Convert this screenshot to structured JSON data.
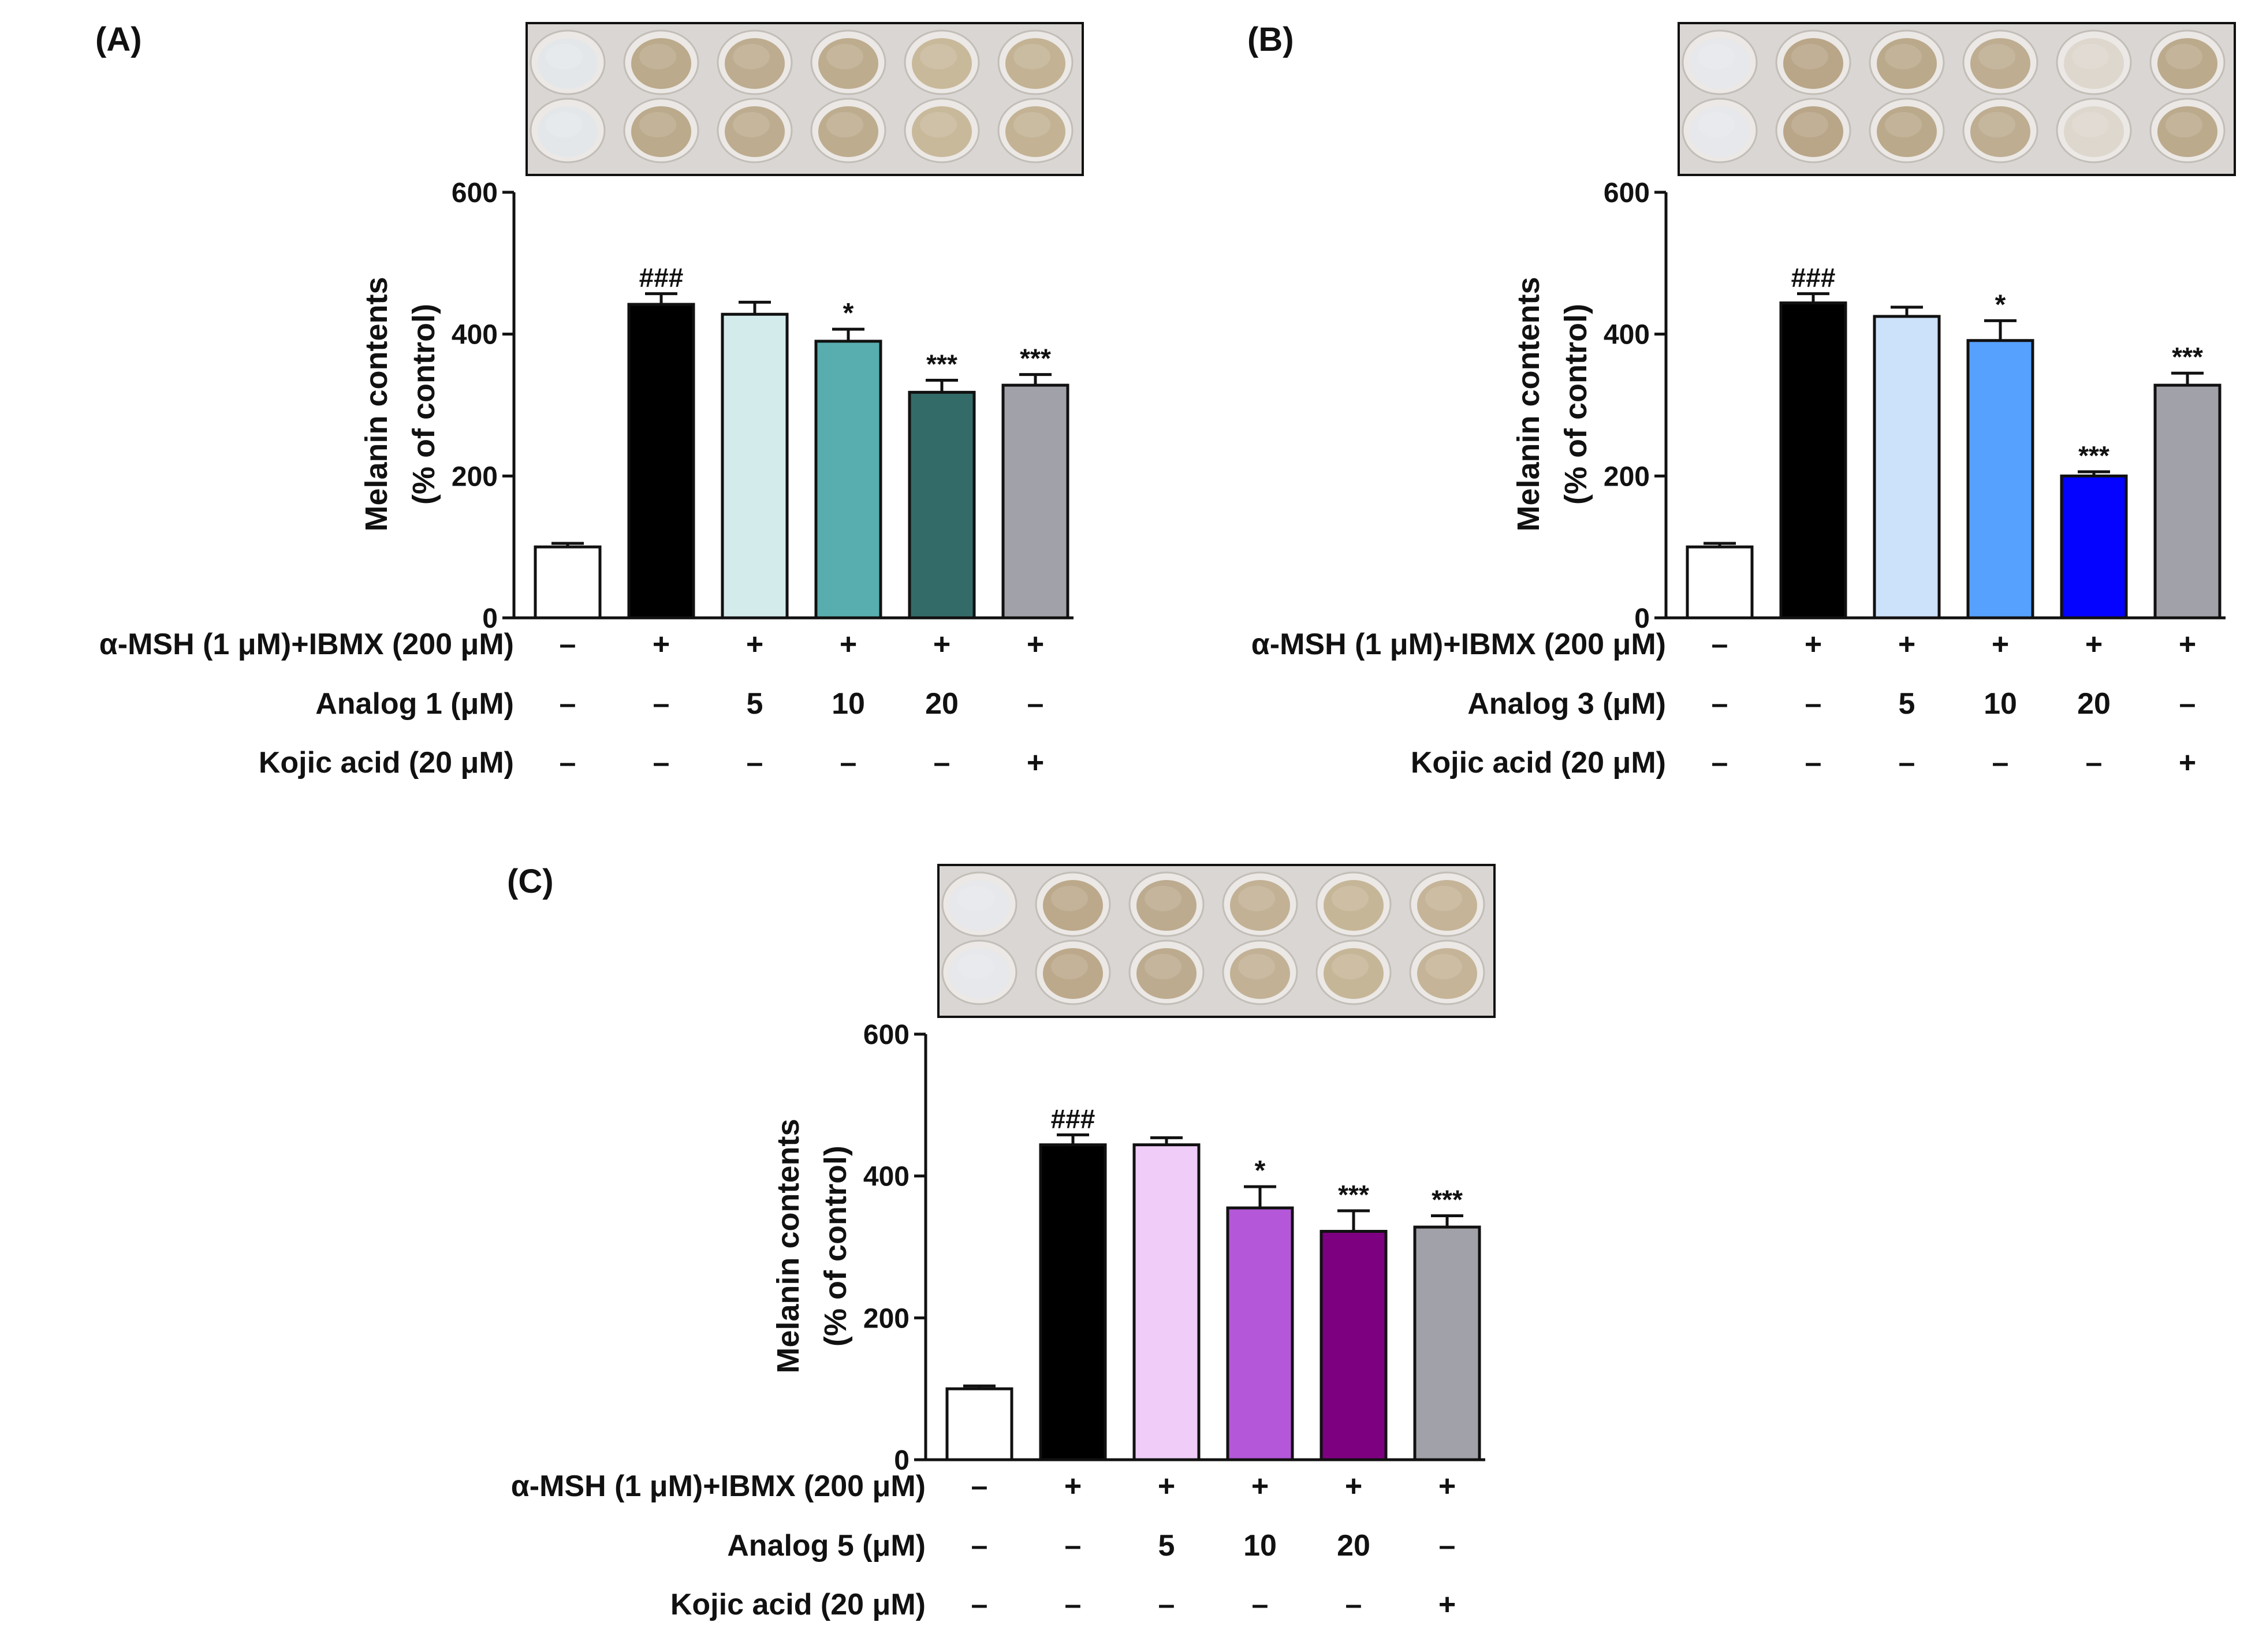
{
  "chart_data": [
    {
      "panel_label": "(A)",
      "type": "bar",
      "ylabel_lines": [
        "Melanin contents",
        "(% of control)"
      ],
      "xlabel": "",
      "ylim": [
        0,
        600
      ],
      "yticks": [
        "0",
        "200",
        "400",
        "600"
      ],
      "bars": [
        {
          "value": 100,
          "error": 5,
          "color": "#ffffff",
          "annotation": ""
        },
        {
          "value": 442,
          "error": 15,
          "color": "#000000",
          "annotation": "###"
        },
        {
          "value": 428,
          "error": 17,
          "color": "#d4ebec",
          "annotation": ""
        },
        {
          "value": 390,
          "error": 17,
          "color": "#58aeae",
          "annotation": "*"
        },
        {
          "value": 318,
          "error": 17,
          "color": "#336b69",
          "annotation": "***"
        },
        {
          "value": 328,
          "error": 15,
          "color": "#a1a1a9",
          "annotation": "***"
        }
      ],
      "treatment_rows": [
        {
          "label": "α-MSH (1 μM)+IBMX (200 μM)",
          "values": [
            "–",
            "+",
            "+",
            "+",
            "+",
            "+"
          ]
        },
        {
          "label": "Analog 1 (μM)",
          "values": [
            "–",
            "–",
            "5",
            "10",
            "20",
            "–"
          ]
        },
        {
          "label": "Kojic acid (20 μM)",
          "values": [
            "–",
            "–",
            "–",
            "–",
            "–",
            "+"
          ]
        }
      ],
      "plate_photo": {
        "rows": 2,
        "wells": 6,
        "well_colors": [
          "#e4e7ea",
          "#b8a686",
          "#bba98a",
          "#bca98a",
          "#c7b697",
          "#c1b08f"
        ]
      }
    },
    {
      "panel_label": "(B)",
      "type": "bar",
      "ylabel_lines": [
        "Melanin contents",
        "(% of control)"
      ],
      "xlabel": "",
      "ylim": [
        0,
        600
      ],
      "yticks": [
        "0",
        "200",
        "400",
        "600"
      ],
      "bars": [
        {
          "value": 100,
          "error": 5,
          "color": "#ffffff",
          "annotation": ""
        },
        {
          "value": 444,
          "error": 13,
          "color": "#000000",
          "annotation": "###"
        },
        {
          "value": 425,
          "error": 13,
          "color": "#cce1fa",
          "annotation": ""
        },
        {
          "value": 391,
          "error": 28,
          "color": "#56a1fe",
          "annotation": "*"
        },
        {
          "value": 200,
          "error": 6,
          "color": "#0303ff",
          "annotation": "***"
        },
        {
          "value": 328,
          "error": 17,
          "color": "#a1a1a9",
          "annotation": "***"
        }
      ],
      "treatment_rows": [
        {
          "label": "α-MSH (1 μM)+IBMX (200 μM)",
          "values": [
            "–",
            "+",
            "+",
            "+",
            "+",
            "+"
          ]
        },
        {
          "label": "Analog 3 (μM)",
          "values": [
            "–",
            "–",
            "5",
            "10",
            "20",
            "–"
          ]
        },
        {
          "label": "Kojic acid (20 μM)",
          "values": [
            "–",
            "–",
            "–",
            "–",
            "–",
            "+"
          ]
        }
      ],
      "plate_photo": {
        "rows": 2,
        "wells": 6,
        "well_colors": [
          "#e6e8eb",
          "#b6a283",
          "#b8a586",
          "#bcaa8c",
          "#dcd6cb",
          "#b9a788"
        ]
      }
    },
    {
      "panel_label": "(C)",
      "type": "bar",
      "ylabel_lines": [
        "Melanin contents",
        "(% of control)"
      ],
      "xlabel": "",
      "ylim": [
        0,
        600
      ],
      "yticks": [
        "0",
        "200",
        "400",
        "600"
      ],
      "bars": [
        {
          "value": 100,
          "error": 4,
          "color": "#ffffff",
          "annotation": ""
        },
        {
          "value": 444,
          "error": 14,
          "color": "#000000",
          "annotation": "###"
        },
        {
          "value": 444,
          "error": 10,
          "color": "#efcdf8",
          "annotation": ""
        },
        {
          "value": 355,
          "error": 30,
          "color": "#b457d9",
          "annotation": "*"
        },
        {
          "value": 322,
          "error": 29,
          "color": "#7d0080",
          "annotation": "***"
        },
        {
          "value": 328,
          "error": 16,
          "color": "#a1a1a9",
          "annotation": "***"
        }
      ],
      "treatment_rows": [
        {
          "label": "α-MSH (1 μM)+IBMX (200 μM)",
          "values": [
            "–",
            "+",
            "+",
            "+",
            "+",
            "+"
          ]
        },
        {
          "label": "Analog 5 (μM)",
          "values": [
            "–",
            "–",
            "5",
            "10",
            "20",
            "–"
          ]
        },
        {
          "label": "Kojic acid (20 μM)",
          "values": [
            "–",
            "–",
            "–",
            "–",
            "–",
            "+"
          ]
        }
      ],
      "plate_photo": {
        "rows": 2,
        "wells": 6,
        "well_colors": [
          "#e6e8eb",
          "#b9a586",
          "#bba88a",
          "#c0ae90",
          "#c4b394",
          "#c3b192"
        ]
      }
    }
  ]
}
